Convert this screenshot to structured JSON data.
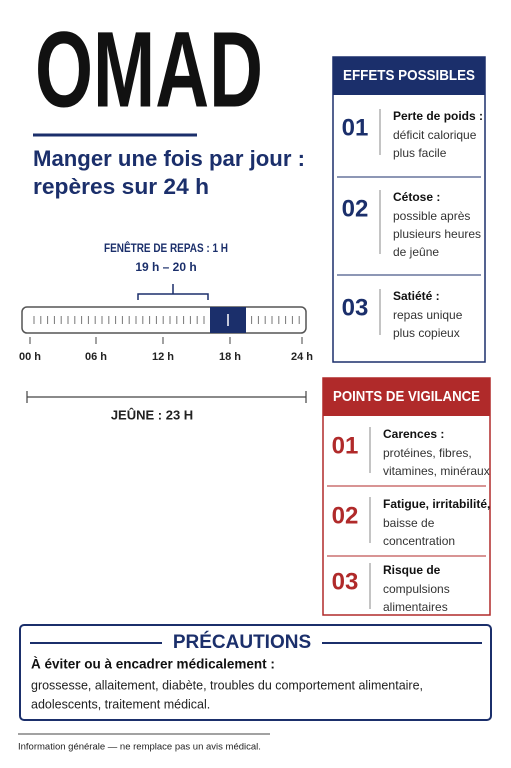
{
  "header": {
    "title": "OMAD",
    "subtitle": [
      "Manger une fois par jour :",
      "repères sur 24 h"
    ]
  },
  "timeline": {
    "window_label": "FENÊTRE DE REPAS : 1 H",
    "window_time": "19 h – 20 h",
    "hours": [
      "00 h",
      "06 h",
      "12 h",
      "18 h",
      "24 h"
    ],
    "fasting_label": "JEÛNE : 23 H"
  },
  "effects": {
    "title": "EFFETS POSSIBLES",
    "items": [
      {
        "number": "01",
        "title": "Perte de poids :",
        "lines": [
          "déficit calorique",
          "plus facile"
        ]
      },
      {
        "number": "02",
        "title": "Cétose :",
        "lines": [
          "possible après",
          "plusieurs heures",
          "de jeûne"
        ]
      },
      {
        "number": "03",
        "title": "Satiété :",
        "lines": [
          "repas unique",
          "plus copieux"
        ]
      }
    ]
  },
  "vigilance": {
    "title": "POINTS DE VIGILANCE",
    "items": [
      {
        "number": "01",
        "title": "Carences :",
        "lines": [
          "protéines, fibres,",
          "vitamines, minéraux"
        ]
      },
      {
        "number": "02",
        "title": "Fatigue, irritabilité,",
        "lines": [
          "baisse de",
          "concentration"
        ]
      },
      {
        "number": "03",
        "title": "Risque de",
        "lines": [
          "compulsions",
          "alimentaires"
        ]
      }
    ]
  },
  "precautions": {
    "title": "PRÉCAUTIONS",
    "lead": "À éviter ou à encadrer médicalement :",
    "lines": [
      "grossesse, allaitement, diabète, troubles du comportement alimentaire,",
      "adolescents, traitement médical."
    ]
  },
  "footer": "Information générale — ne remplace pas un avis médical."
}
